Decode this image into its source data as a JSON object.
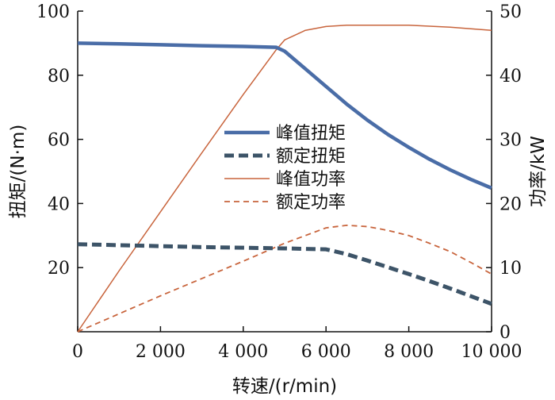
{
  "chart_data": {
    "type": "line",
    "xlabel": "转速/(r/min)",
    "ylabel_left": "扭矩/(N·m)",
    "ylabel_right": "功率/kW",
    "xlim": [
      0,
      10000
    ],
    "ylim_left": [
      0,
      100
    ],
    "ylim_right": [
      0,
      50
    ],
    "x_ticks": [
      0,
      2000,
      4000,
      6000,
      8000,
      10000
    ],
    "x_tick_labels": [
      "0",
      "2 000",
      "4 000",
      "6 000",
      "8 000",
      "10 000"
    ],
    "y_left_ticks": [
      20,
      40,
      60,
      80,
      100
    ],
    "y_left_tick_labels": [
      "20",
      "40",
      "60",
      "80",
      "100"
    ],
    "y_right_ticks": [
      0,
      10,
      20,
      30,
      40,
      50
    ],
    "y_right_tick_labels": [
      "0",
      "10",
      "20",
      "30",
      "40",
      "50"
    ],
    "grid": false,
    "legend_position": "center",
    "series": [
      {
        "name": "峰值扭矩",
        "axis": "left",
        "color": "#4a6da7",
        "style": "solid-thick",
        "x": [
          0,
          1000,
          2000,
          3000,
          4000,
          4800,
          5000,
          5500,
          6000,
          6500,
          7000,
          7500,
          8000,
          8500,
          9000,
          9500,
          10000
        ],
        "y": [
          90,
          89.8,
          89.5,
          89.2,
          89,
          88.7,
          87.5,
          82,
          76.5,
          71,
          66,
          61.5,
          57.5,
          53.8,
          50.5,
          47.5,
          44.8
        ]
      },
      {
        "name": "额定扭矩",
        "axis": "left",
        "color": "#3d5468",
        "style": "dashed-thick",
        "x": [
          0,
          1000,
          2000,
          3000,
          4000,
          5000,
          6000,
          6500,
          7000,
          7500,
          8000,
          8500,
          9000,
          9500,
          10000
        ],
        "y": [
          27.3,
          27,
          26.7,
          26.4,
          26.2,
          26,
          25.7,
          24.2,
          22.2,
          20.1,
          18,
          15.8,
          13.5,
          11.1,
          8.7
        ]
      },
      {
        "name": "峰值功率",
        "axis": "right",
        "color": "#c8643c",
        "style": "solid-thin",
        "x": [
          0,
          1000,
          2000,
          3000,
          4000,
          4800,
          5000,
          5500,
          6000,
          6500,
          7000,
          8000,
          9000,
          10000
        ],
        "y": [
          0,
          9.5,
          18.7,
          27.9,
          37,
          44,
          45.5,
          47,
          47.6,
          47.8,
          47.8,
          47.8,
          47.5,
          47
        ]
      },
      {
        "name": "额定功率",
        "axis": "right",
        "color": "#c8643c",
        "style": "dashed-thin",
        "x": [
          0,
          1000,
          2000,
          3000,
          4000,
          5000,
          6000,
          6500,
          7000,
          7500,
          8000,
          8500,
          9000,
          9500,
          10000
        ],
        "y": [
          0,
          2.8,
          5.6,
          8.3,
          11,
          13.8,
          16.2,
          16.6,
          16.4,
          15.8,
          15,
          13.8,
          12.5,
          10.8,
          9
        ]
      }
    ]
  }
}
